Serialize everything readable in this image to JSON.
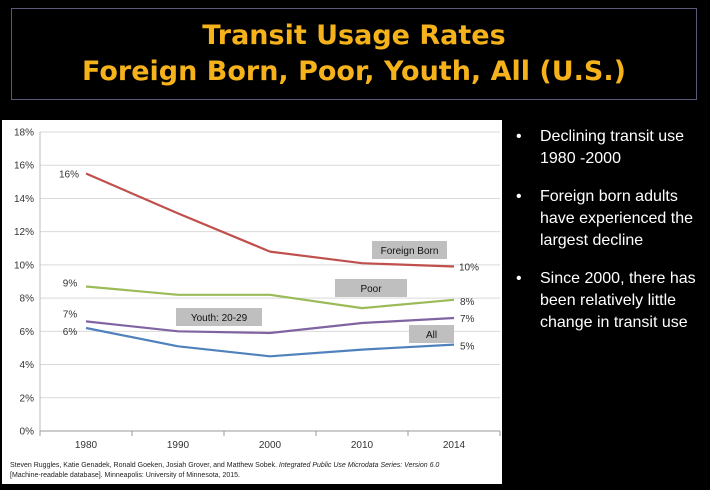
{
  "slide": {
    "title_line1": "Transit Usage Rates",
    "title_line2": "Foreign Born, Poor, Youth, All (U.S.)",
    "bullets": [
      "Declining transit use 1980 -2000",
      "Foreign born adults have experienced the largest decline",
      "Since 2000, there has been relatively little change in transit use"
    ],
    "citation": {
      "authors": "Steven Ruggles, Katie Genadek, Ronald Goeken, Josiah Grover, and Matthew Sobek.",
      "work": "Integrated Public Use Microdata Series: Version 6.0",
      "rest": "[Machine-readable database]. Minneapolis: University of Minnesota, 2015."
    }
  },
  "colors": {
    "foreign_born": "#c0504d",
    "poor": "#9bbb59",
    "youth": "#8064a2",
    "all": "#4f81bd",
    "title": "#f5b21b",
    "label_box": "#bfbfbf"
  },
  "chart_data": {
    "type": "line",
    "x": [
      1980,
      1990,
      2000,
      2010,
      2014
    ],
    "categories": [
      "1980",
      "1990",
      "2000",
      "2010",
      "2014"
    ],
    "ylim": [
      0,
      18
    ],
    "y_ticks": [
      "0%",
      "2%",
      "4%",
      "6%",
      "8%",
      "10%",
      "12%",
      "14%",
      "16%",
      "18%"
    ],
    "grid": "horizontal",
    "series": [
      {
        "key": "foreign_born",
        "name": "Foreign Born",
        "values": [
          15.5,
          13.1,
          10.8,
          10.1,
          9.9
        ],
        "start_label": "16%",
        "end_label": "10%"
      },
      {
        "key": "poor",
        "name": "Poor",
        "values": [
          8.7,
          8.2,
          8.2,
          7.4,
          7.9
        ],
        "start_label": "9%",
        "end_label": "8%"
      },
      {
        "key": "youth",
        "name": "Youth:  20-29",
        "values": [
          6.6,
          6.0,
          5.9,
          6.5,
          6.8
        ],
        "start_label": "7%",
        "end_label": "7%"
      },
      {
        "key": "all",
        "name": "All",
        "values": [
          6.2,
          5.1,
          4.5,
          4.9,
          5.2
        ],
        "start_label": "6%",
        "end_label": "5%"
      }
    ]
  }
}
